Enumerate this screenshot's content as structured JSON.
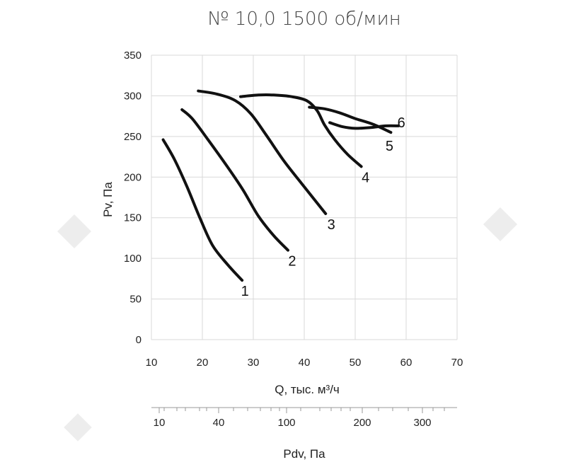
{
  "chart_data": {
    "type": "line",
    "title": "№ 10,0 1500 об/мин",
    "xlabel": "Q, тыс. м³/ч",
    "ylabel": "Pv, Па",
    "secondary_xlabel": "Pdv, Па",
    "xlim": [
      10,
      70
    ],
    "ylim": [
      0,
      350
    ],
    "x_ticks": [
      10,
      20,
      30,
      40,
      50,
      60,
      70
    ],
    "y_ticks": [
      0,
      50,
      100,
      150,
      200,
      250,
      300,
      350
    ],
    "secondary_x_ticks": [
      10,
      40,
      100,
      200,
      300
    ],
    "grid": true,
    "series": [
      {
        "name": "1",
        "points": [
          [
            12.3,
            246
          ],
          [
            14.5,
            222
          ],
          [
            17.0,
            188
          ],
          [
            19.5,
            150
          ],
          [
            22.0,
            116
          ],
          [
            25.0,
            92
          ],
          [
            27.8,
            73
          ]
        ]
      },
      {
        "name": "2",
        "points": [
          [
            16.0,
            283
          ],
          [
            18.0,
            272
          ],
          [
            21.0,
            247
          ],
          [
            25.0,
            212
          ],
          [
            28.0,
            184
          ],
          [
            31.0,
            152
          ],
          [
            34.0,
            128
          ],
          [
            36.8,
            110
          ]
        ]
      },
      {
        "name": "3",
        "points": [
          [
            19.2,
            306
          ],
          [
            23.0,
            302
          ],
          [
            26.5,
            294
          ],
          [
            29.5,
            278
          ],
          [
            32.5,
            252
          ],
          [
            36.0,
            220
          ],
          [
            39.5,
            192
          ],
          [
            44.2,
            155
          ]
        ]
      },
      {
        "name": "4",
        "points": [
          [
            27.5,
            299
          ],
          [
            31.0,
            301
          ],
          [
            34.0,
            301
          ],
          [
            37.5,
            299
          ],
          [
            40.5,
            294
          ],
          [
            42.5,
            282
          ],
          [
            44.0,
            264
          ],
          [
            46.0,
            246
          ],
          [
            48.5,
            228
          ],
          [
            51.2,
            213
          ]
        ]
      },
      {
        "name": "5",
        "points": [
          [
            41.0,
            286
          ],
          [
            44.0,
            284
          ],
          [
            47.0,
            279
          ],
          [
            50.0,
            272
          ],
          [
            53.5,
            265
          ],
          [
            57.0,
            255
          ]
        ]
      },
      {
        "name": "6",
        "points": [
          [
            45.0,
            267
          ],
          [
            47.5,
            262
          ],
          [
            50.0,
            260
          ],
          [
            53.0,
            261
          ],
          [
            56.0,
            263
          ],
          [
            58.5,
            263
          ]
        ]
      }
    ]
  }
}
